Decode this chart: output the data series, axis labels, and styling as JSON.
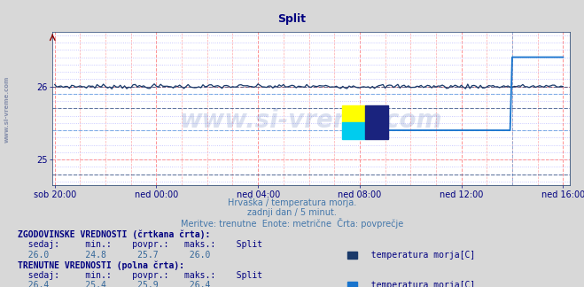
{
  "title": "Split",
  "title_color": "#000080",
  "subtitle1": "Hrvaška / temperatura morja.",
  "subtitle2": "zadnji dan / 5 minut.",
  "subtitle3": "Meritve: trenutne  Enote: metrične  Črta: povprečje",
  "subtitle_color": "#4477aa",
  "bg_color": "#d8d8d8",
  "plot_bg_color": "#ffffff",
  "xlabel_color": "#000080",
  "ylabel_color": "#000080",
  "ylim": [
    24.65,
    26.75
  ],
  "y_ticks": [
    25.0,
    26.0
  ],
  "grid_red_color": "#ff8888",
  "grid_blue_color": "#aaaaff",
  "hist_color": "#1a3a6a",
  "curr_color": "#1874CD",
  "hist_sedaj": 26.0,
  "hist_min": 24.8,
  "hist_povpr": 25.7,
  "hist_maks": 26.0,
  "curr_sedaj": 26.4,
  "curr_min": 25.4,
  "curr_povpr": 25.9,
  "curr_maks": 26.4,
  "watermark": "www.si-vreme.com",
  "watermark_color": "#3355aa",
  "watermark_alpha": 0.18,
  "stats_text1": "ZGODOVINSKE VREDNOSTI (črtkana črta):",
  "stats_text2": "TRENUTNE VREDNOSTI (polna črta):",
  "stats_color": "#000080",
  "stats_val_color": "#336699",
  "stats_font_size": 7,
  "footnote_fontsize": 7,
  "tick_fontsize": 7,
  "title_fontsize": 9
}
